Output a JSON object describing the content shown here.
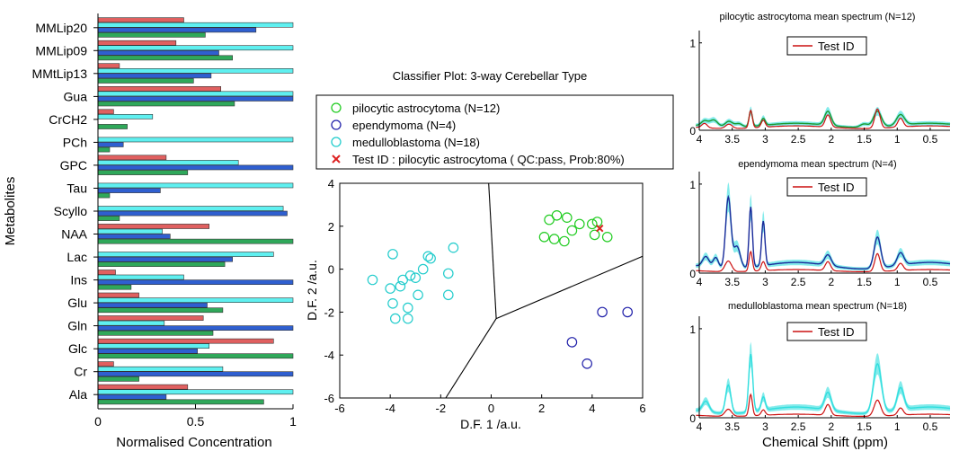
{
  "colors": {
    "red": "#e06060",
    "cyan": "#5ff0f0",
    "blue": "#2f5fd0",
    "green": "#2fa85a",
    "test_red": "#dd2020",
    "scatter_green": "#22cc22",
    "scatter_blue": "#2222aa",
    "scatter_cyan": "#22cccc",
    "spec_green": "#1a9a30",
    "spec_blue": "#1a2a9a",
    "spec_cyan": "#30dede",
    "spec_red": "#cc1010"
  },
  "chart_data": [
    {
      "type": "bar",
      "orientation": "horizontal",
      "title": "",
      "xlabel": "Normalised Concentration",
      "ylabel": "Metabolites",
      "xlim": [
        0,
        1
      ],
      "xticks": [
        "0",
        "0.5",
        "1"
      ],
      "categories": [
        "MMLip20",
        "MMLip09",
        "MMtLip13",
        "Gua",
        "CrCH2",
        "PCh",
        "GPC",
        "Tau",
        "Scyllo",
        "NAA",
        "Lac",
        "Ins",
        "Glu",
        "Gln",
        "Glc",
        "Cr",
        "Ala"
      ],
      "series": [
        {
          "color": "red",
          "values": [
            0.44,
            0.4,
            0.11,
            0.63,
            0.08,
            0.0,
            0.35,
            0.0,
            0.0,
            0.57,
            0.0,
            0.09,
            0.21,
            0.54,
            0.9,
            0.08,
            0.46
          ]
        },
        {
          "color": "cyan",
          "values": [
            1.0,
            1.0,
            1.0,
            1.0,
            0.28,
            1.0,
            0.72,
            1.0,
            0.95,
            0.33,
            0.9,
            0.44,
            1.0,
            0.34,
            0.57,
            0.64,
            1.0
          ]
        },
        {
          "color": "blue",
          "values": [
            0.81,
            0.62,
            0.58,
            1.0,
            0.0,
            0.13,
            1.0,
            0.32,
            0.97,
            0.37,
            0.69,
            1.0,
            0.56,
            1.0,
            0.51,
            1.0,
            0.35
          ]
        },
        {
          "color": "green",
          "values": [
            0.55,
            0.69,
            0.49,
            0.7,
            0.15,
            0.06,
            0.46,
            0.06,
            0.11,
            1.0,
            0.65,
            0.17,
            0.64,
            0.59,
            1.0,
            0.21,
            0.85
          ]
        }
      ]
    },
    {
      "type": "scatter",
      "title": "Classifier Plot: 3-way Cerebellar Type",
      "xlabel": "D.F. 1 /a.u.",
      "ylabel": "D.F. 2 /a.u.",
      "xlim": [
        -6,
        6
      ],
      "ylim": [
        -6,
        4
      ],
      "xticks": [
        "-6",
        "-4",
        "-2",
        "0",
        "2",
        "4",
        "6"
      ],
      "yticks": [
        "-6",
        "-4",
        "-2",
        "0",
        "2",
        "4"
      ],
      "legend": {
        "placement": "top",
        "entries": [
          {
            "label": "pilocytic astrocytoma (N=12)",
            "color": "scatter_green",
            "marker": "circle"
          },
          {
            "label": "ependymoma (N=4)",
            "color": "scatter_blue",
            "marker": "circle"
          },
          {
            "label": "medulloblastoma (N=18)",
            "color": "scatter_cyan",
            "marker": "circle"
          },
          {
            "label": "Test ID : pilocytic astrocytoma ( QC:pass, Prob:80%)",
            "color": "test_red",
            "marker": "x"
          }
        ]
      },
      "series": [
        {
          "color": "scatter_green",
          "marker": "circle",
          "points": [
            [
              2.3,
              2.3
            ],
            [
              2.6,
              2.5
            ],
            [
              3.0,
              2.4
            ],
            [
              3.5,
              2.1
            ],
            [
              4.0,
              2.1
            ],
            [
              4.2,
              2.2
            ],
            [
              3.2,
              1.8
            ],
            [
              2.1,
              1.5
            ],
            [
              2.5,
              1.4
            ],
            [
              2.9,
              1.3
            ],
            [
              4.1,
              1.6
            ],
            [
              4.6,
              1.5
            ]
          ]
        },
        {
          "color": "scatter_blue",
          "marker": "circle",
          "points": [
            [
              4.4,
              -2.0
            ],
            [
              5.4,
              -2.0
            ],
            [
              3.2,
              -3.4
            ],
            [
              3.8,
              -4.4
            ]
          ]
        },
        {
          "color": "scatter_cyan",
          "marker": "circle",
          "points": [
            [
              -3.9,
              0.7
            ],
            [
              -2.4,
              0.5
            ],
            [
              -2.5,
              0.6
            ],
            [
              -1.5,
              1.0
            ],
            [
              -2.7,
              0.0
            ],
            [
              -1.7,
              -0.2
            ],
            [
              -3.2,
              -0.3
            ],
            [
              -3.5,
              -0.5
            ],
            [
              -3.0,
              -0.4
            ],
            [
              -4.7,
              -0.5
            ],
            [
              -3.6,
              -0.8
            ],
            [
              -4.0,
              -0.9
            ],
            [
              -2.9,
              -1.2
            ],
            [
              -1.7,
              -1.2
            ],
            [
              -3.9,
              -1.6
            ],
            [
              -3.3,
              -1.8
            ],
            [
              -3.8,
              -2.3
            ],
            [
              -3.3,
              -2.3
            ]
          ]
        },
        {
          "color": "test_red",
          "marker": "x",
          "points": [
            [
              4.3,
              1.9
            ]
          ]
        }
      ],
      "boundaries": [
        {
          "from": [
            0.2,
            -2.3
          ],
          "to": [
            -0.1,
            4.0
          ]
        },
        {
          "from": [
            0.2,
            -2.3
          ],
          "to": [
            6.0,
            0.6
          ]
        },
        {
          "from": [
            0.2,
            -2.3
          ],
          "to": [
            -1.8,
            -6.0
          ]
        }
      ]
    },
    {
      "type": "line",
      "title": "pilocytic astrocytoma mean spectrum (N=12)",
      "legend": {
        "placement": "top-center",
        "entries": [
          {
            "label": "Test ID",
            "color": "spec_red"
          }
        ]
      },
      "xlim": [
        4,
        0.2
      ],
      "ylim": [
        0,
        1.1
      ],
      "xticks": [
        "4",
        "3.5",
        "3",
        "2.5",
        "2",
        "1.5",
        "1",
        "0.5"
      ],
      "yticks": [
        "0",
        "1"
      ],
      "band_color": "spec_cyan",
      "mean_color": "spec_green",
      "mean_peaks": [
        [
          3.92,
          0.06,
          0.05
        ],
        [
          3.78,
          0.08,
          0.06
        ],
        [
          3.55,
          0.07,
          0.06
        ],
        [
          3.4,
          0.04,
          0.05
        ],
        [
          3.22,
          0.18,
          0.025
        ],
        [
          3.03,
          0.08,
          0.03
        ],
        [
          2.05,
          0.16,
          0.05
        ],
        [
          1.5,
          0.04,
          0.06
        ],
        [
          1.3,
          0.18,
          0.06
        ],
        [
          0.95,
          0.12,
          0.06
        ]
      ],
      "mean_baseline": 0.08,
      "test_peaks": [
        [
          3.92,
          0.05,
          0.04
        ],
        [
          3.55,
          0.05,
          0.05
        ],
        [
          3.22,
          0.2,
          0.025
        ],
        [
          3.03,
          0.08,
          0.03
        ],
        [
          2.05,
          0.14,
          0.04
        ],
        [
          1.3,
          0.22,
          0.04
        ],
        [
          0.95,
          0.1,
          0.04
        ]
      ],
      "test_baseline": 0.05
    },
    {
      "type": "line",
      "title": "ependymoma mean spectrum (N=4)",
      "legend": {
        "placement": "top-center",
        "entries": [
          {
            "label": "Test ID",
            "color": "spec_red"
          }
        ]
      },
      "xlim": [
        4,
        0.2
      ],
      "ylim": [
        0,
        1.1
      ],
      "xticks": [
        "4",
        "3.5",
        "3",
        "2.5",
        "2",
        "1.5",
        "1",
        "0.5"
      ],
      "yticks": [
        "0",
        "1"
      ],
      "band_color": "spec_cyan",
      "mean_color": "spec_blue",
      "mean_peaks": [
        [
          3.9,
          0.12,
          0.05
        ],
        [
          3.75,
          0.12,
          0.04
        ],
        [
          3.56,
          0.8,
          0.04
        ],
        [
          3.43,
          0.25,
          0.05
        ],
        [
          3.22,
          0.68,
          0.025
        ],
        [
          3.03,
          0.5,
          0.025
        ],
        [
          2.05,
          0.12,
          0.05
        ],
        [
          1.3,
          0.35,
          0.05
        ],
        [
          0.95,
          0.14,
          0.05
        ]
      ],
      "mean_baseline": 0.12,
      "test_peaks": [
        [
          3.56,
          0.12,
          0.05
        ],
        [
          3.22,
          0.22,
          0.025
        ],
        [
          3.03,
          0.1,
          0.03
        ],
        [
          2.05,
          0.1,
          0.04
        ],
        [
          1.3,
          0.2,
          0.04
        ],
        [
          0.95,
          0.08,
          0.04
        ]
      ],
      "test_baseline": 0.04
    },
    {
      "type": "line",
      "title": "medulloblastoma mean spectrum (N=18)",
      "legend": {
        "placement": "top-center",
        "entries": [
          {
            "label": "Test ID",
            "color": "spec_red"
          }
        ]
      },
      "xlim": [
        4,
        0.2
      ],
      "ylim": [
        0,
        1.1
      ],
      "xticks": [
        "4",
        "3.5",
        "3",
        "2.5",
        "2",
        "1.5",
        "1",
        "0.5"
      ],
      "yticks": [
        "0",
        "1"
      ],
      "band_color": "spec_cyan",
      "mean_color": "spec_cyan",
      "mean_peaks": [
        [
          3.9,
          0.12,
          0.05
        ],
        [
          3.56,
          0.32,
          0.04
        ],
        [
          3.22,
          0.65,
          0.03
        ],
        [
          3.03,
          0.15,
          0.03
        ],
        [
          2.05,
          0.2,
          0.05
        ],
        [
          1.3,
          0.55,
          0.06
        ],
        [
          0.95,
          0.25,
          0.05
        ]
      ],
      "mean_baseline": 0.12,
      "test_peaks": [
        [
          3.56,
          0.08,
          0.05
        ],
        [
          3.22,
          0.24,
          0.025
        ],
        [
          3.03,
          0.06,
          0.03
        ],
        [
          2.05,
          0.12,
          0.04
        ],
        [
          1.3,
          0.18,
          0.05
        ],
        [
          0.95,
          0.08,
          0.04
        ]
      ],
      "test_baseline": 0.04
    }
  ],
  "spectra_xlabel": "Chemical Shift (ppm)"
}
